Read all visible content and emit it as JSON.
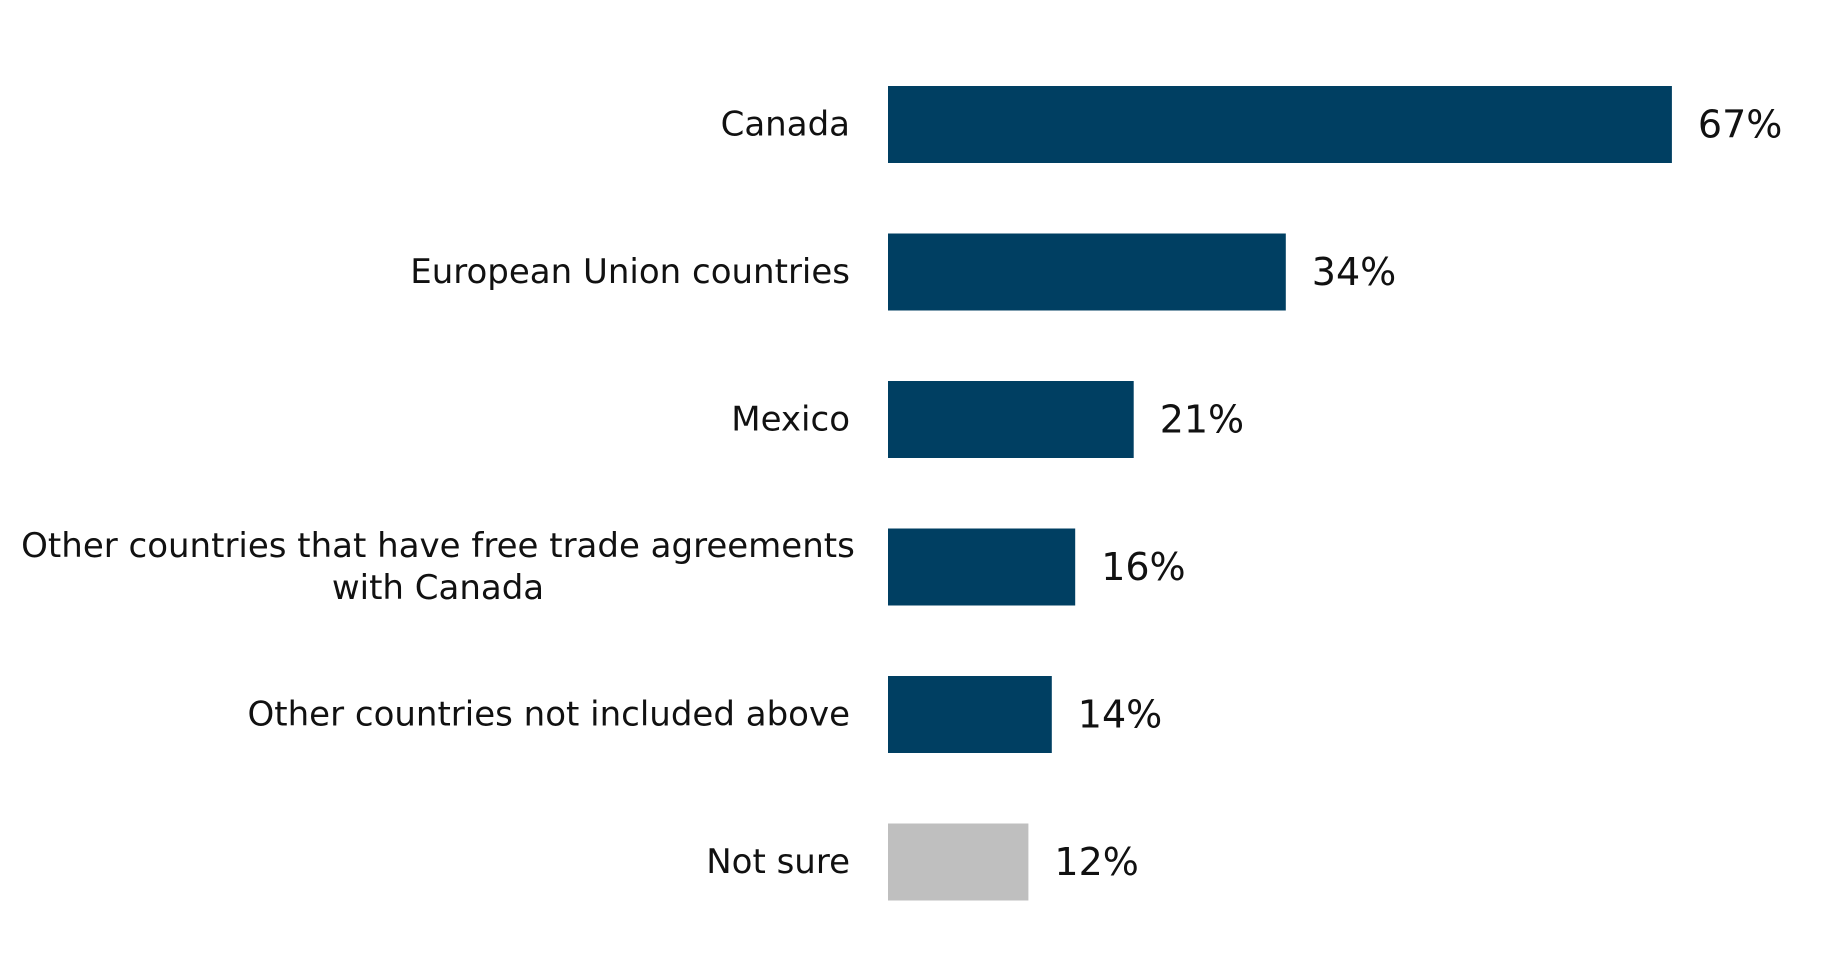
{
  "chart_data": {
    "type": "bar",
    "orientation": "horizontal",
    "categories": [
      "Canada",
      "European Union countries",
      "Mexico",
      "Other countries that have free trade agreements with Canada",
      "Other countries not included above",
      "Not sure"
    ],
    "category_lines": [
      [
        "Canada"
      ],
      [
        "European Union countries"
      ],
      [
        "Mexico"
      ],
      [
        "Other countries that have free trade agreements",
        "with Canada"
      ],
      [
        "Other countries not included above"
      ],
      [
        "Not sure"
      ]
    ],
    "values": [
      67,
      34,
      21,
      16,
      14,
      12
    ],
    "value_labels": [
      "67%",
      "34%",
      "21%",
      "16%",
      "14%",
      "12%"
    ],
    "bar_colors": [
      "#003f62",
      "#003f62",
      "#003f62",
      "#003f62",
      "#003f62",
      "#bfbfbf"
    ],
    "title": "",
    "xlabel": "",
    "ylabel": "",
    "xlim": [
      0,
      67
    ],
    "grid": false,
    "legend": "none"
  }
}
